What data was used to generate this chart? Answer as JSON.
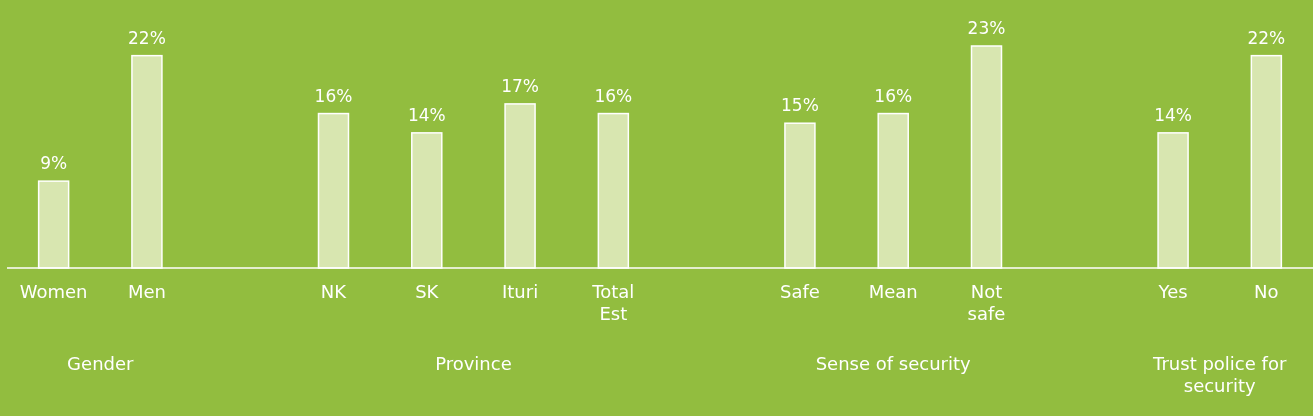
{
  "chart_data": {
    "type": "bar",
    "categories": [
      "Women",
      "Men",
      null,
      "NK",
      "SK",
      "Ituri",
      "Total Est",
      null,
      "Safe",
      "Mean",
      "Not safe",
      null,
      "Yes",
      "No"
    ],
    "values": [
      9,
      22,
      null,
      16,
      14,
      17,
      16,
      null,
      15,
      16,
      23,
      null,
      14,
      22
    ],
    "value_labels": [
      "9%",
      "22%",
      null,
      "16%",
      "14%",
      "17%",
      "16%",
      null,
      "15%",
      "16%",
      "23%",
      null,
      "14%",
      "22%"
    ],
    "color": "#d8e6b0",
    "annotations": [
      "Gender",
      "Province",
      "Sense of security",
      "Trust police for security"
    ]
  }
}
